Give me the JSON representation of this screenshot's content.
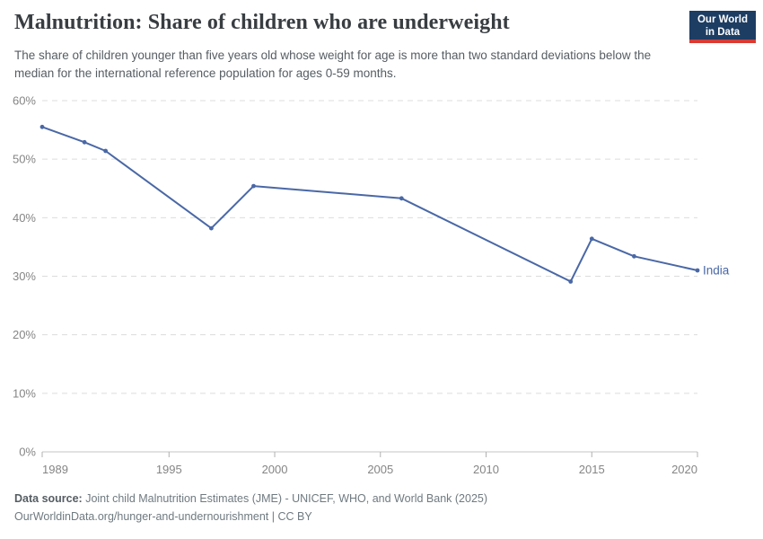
{
  "header": {
    "title": "Malnutrition: Share of children who are underweight",
    "subtitle": "The share of children younger than five years old whose weight for age is more than two standard deviations below the median for the international reference population for ages 0-59 months.",
    "logo": {
      "line1": "Our World",
      "line2": "in Data",
      "bg_color": "#1d3d63",
      "stripe_color": "#d93b33"
    }
  },
  "chart_data": {
    "type": "line",
    "title": "Malnutrition: Share of children who are underweight",
    "xlabel": "",
    "ylabel": "",
    "xlim": [
      1989,
      2020
    ],
    "ylim": [
      0,
      60
    ],
    "x_ticks": [
      1989,
      1995,
      2000,
      2005,
      2010,
      2015,
      2020
    ],
    "y_ticks": [
      0,
      10,
      20,
      30,
      40,
      50,
      60
    ],
    "y_tick_suffix": "%",
    "grid": "horizontal-dashed",
    "legend_position": "end-of-line-label",
    "series": [
      {
        "name": "India",
        "color": "#4a68a6",
        "x": [
          1989,
          1991,
          1992,
          1997,
          1999,
          2006,
          2014,
          2015,
          2017,
          2020
        ],
        "values": [
          55.5,
          52.9,
          51.4,
          38.2,
          45.4,
          43.3,
          29.1,
          36.4,
          33.4,
          31.0
        ]
      }
    ],
    "colors": {
      "grid": "#dcdcdc",
      "axis_line": "#c4c4c4",
      "tick": "#b0b0b0",
      "axis_text": "#858585"
    }
  },
  "footer": {
    "source_label": "Data source:",
    "source_text": " Joint child Malnutrition Estimates (JME) - UNICEF, WHO, and World Bank (2025)",
    "link_line": "OurWorldinData.org/hunger-and-undernourishment | CC BY"
  }
}
